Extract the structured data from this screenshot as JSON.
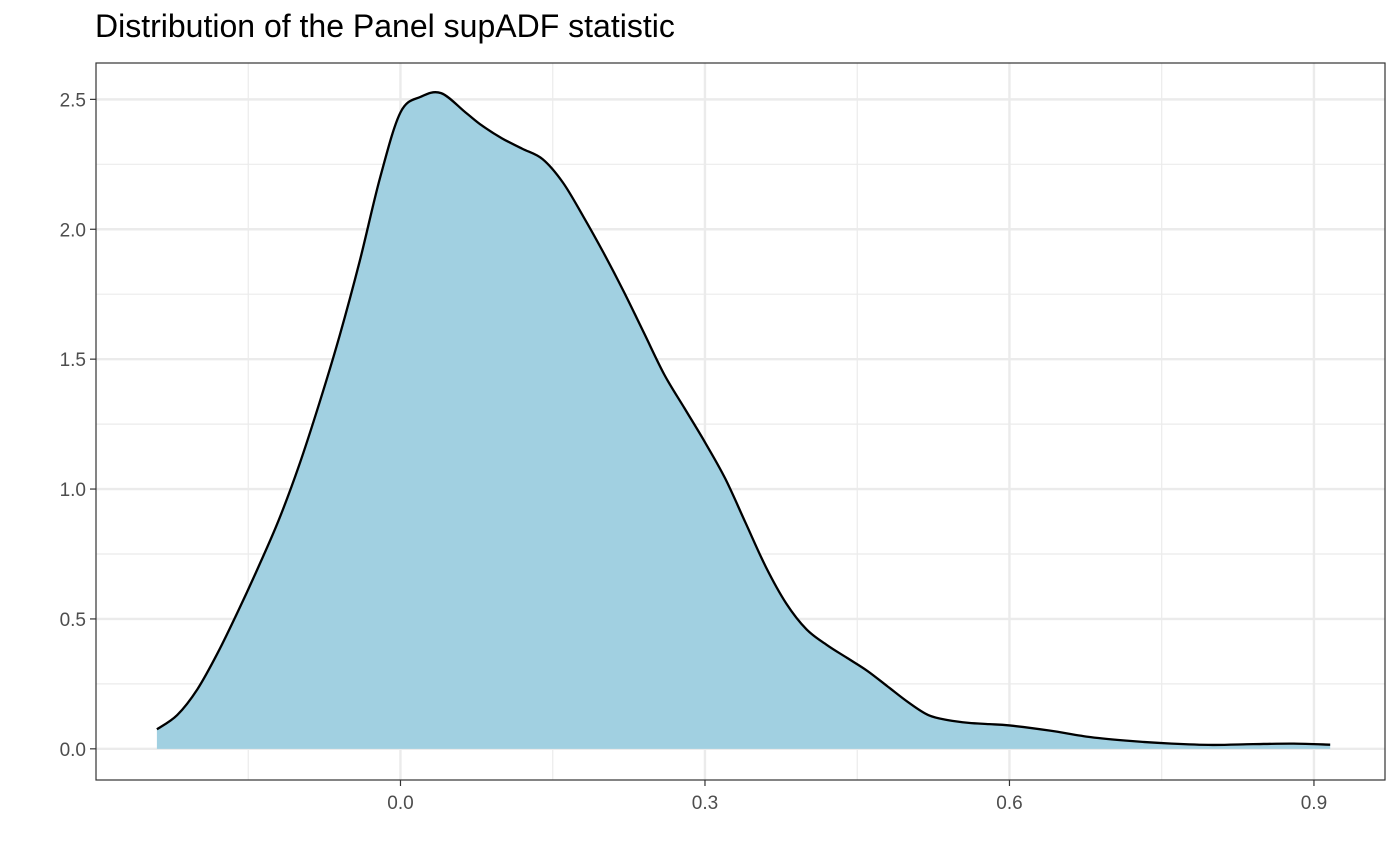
{
  "chart_data": {
    "type": "area",
    "title": "Distribution of the Panel supADF statistic",
    "xlabel": "",
    "ylabel": "",
    "xlim": [
      -0.3,
      0.97
    ],
    "ylim": [
      -0.12,
      2.64
    ],
    "x_ticks": [
      0.0,
      0.3,
      0.6,
      0.9
    ],
    "x_tick_labels": [
      "0.0",
      "0.3",
      "0.6",
      "0.9"
    ],
    "y_ticks": [
      0.0,
      0.5,
      1.0,
      1.5,
      2.0,
      2.5
    ],
    "y_tick_labels": [
      "0.0",
      "0.5",
      "1.0",
      "1.5",
      "2.0",
      "2.5"
    ],
    "x_minor_ticks": [
      -0.15,
      0.15,
      0.45,
      0.75
    ],
    "y_minor_ticks": [
      0.25,
      0.75,
      1.25,
      1.75,
      2.25
    ],
    "grid": true,
    "legend": "none",
    "colors": {
      "fill": "#a1d0e1",
      "line": "#000000",
      "grid": "#ebebeb",
      "border": "#333333"
    },
    "series": [
      {
        "x": [
          -0.24,
          -0.22,
          -0.2,
          -0.18,
          -0.16,
          -0.14,
          -0.12,
          -0.1,
          -0.08,
          -0.06,
          -0.04,
          -0.02,
          0.0,
          0.02,
          0.04,
          0.064,
          0.08,
          0.1,
          0.12,
          0.14,
          0.16,
          0.18,
          0.2,
          0.22,
          0.24,
          0.26,
          0.28,
          0.3,
          0.32,
          0.34,
          0.36,
          0.38,
          0.4,
          0.42,
          0.44,
          0.46,
          0.48,
          0.5,
          0.52,
          0.54,
          0.56,
          0.58,
          0.6,
          0.64,
          0.68,
          0.72,
          0.76,
          0.8,
          0.84,
          0.88,
          0.916
        ],
        "y": [
          0.075,
          0.13,
          0.23,
          0.37,
          0.53,
          0.7,
          0.88,
          1.09,
          1.33,
          1.59,
          1.88,
          2.2,
          2.45,
          2.51,
          2.524,
          2.45,
          2.4,
          2.35,
          2.31,
          2.27,
          2.18,
          2.05,
          1.91,
          1.76,
          1.6,
          1.44,
          1.31,
          1.18,
          1.04,
          0.87,
          0.7,
          0.56,
          0.46,
          0.4,
          0.35,
          0.3,
          0.24,
          0.18,
          0.13,
          0.11,
          0.1,
          0.095,
          0.09,
          0.07,
          0.045,
          0.03,
          0.02,
          0.015,
          0.018,
          0.02,
          0.016
        ]
      }
    ]
  }
}
